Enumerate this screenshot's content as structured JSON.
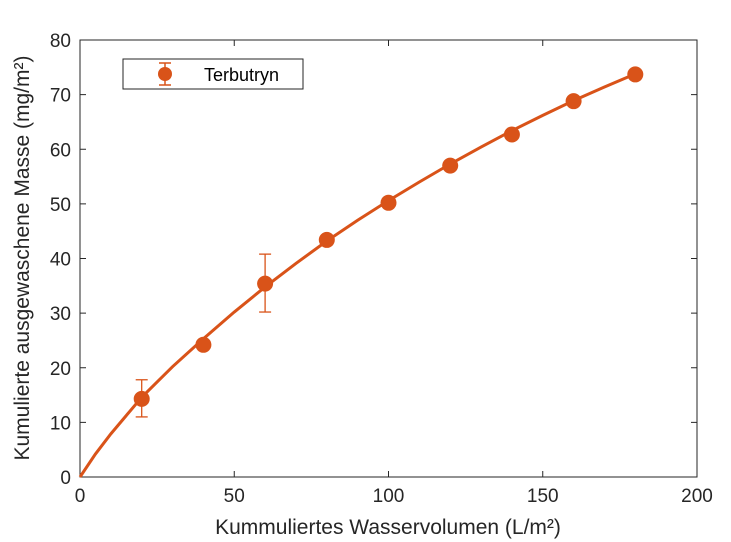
{
  "chart_data": {
    "type": "scatter",
    "title": "",
    "xlabel": "Kummuliertes Wasservolumen (L/m²)",
    "ylabel": "Kumulierte ausgewaschene Masse (mg/m²)",
    "xlim": [
      0,
      200
    ],
    "ylim": [
      0,
      80
    ],
    "xticks": [
      0,
      50,
      100,
      150,
      200
    ],
    "yticks": [
      0,
      10,
      20,
      30,
      40,
      50,
      60,
      70,
      80
    ],
    "xtick_labels": [
      "0",
      "50",
      "100",
      "150",
      "200"
    ],
    "ytick_labels": [
      "0",
      "10",
      "20",
      "30",
      "40",
      "50",
      "60",
      "70",
      "80"
    ],
    "grid": false,
    "legend_position": "top-left",
    "series": [
      {
        "name": "Terbutryn",
        "color": "#D95319",
        "marker": "circle",
        "x": [
          20,
          40,
          60,
          80,
          100,
          120,
          140,
          160,
          180
        ],
        "y": [
          14.3,
          24.2,
          35.4,
          43.4,
          50.2,
          57.0,
          62.7,
          68.8,
          73.7
        ],
        "error_low": [
          3.3,
          0,
          5.2,
          0,
          0.5,
          0,
          0,
          0,
          0
        ],
        "error_high": [
          3.5,
          0,
          5.4,
          0,
          0.5,
          0,
          0,
          0,
          0
        ]
      }
    ],
    "fit_curve": {
      "color": "#D95319",
      "x": [
        0,
        5,
        10,
        20,
        30,
        40,
        50,
        60,
        70,
        80,
        90,
        100,
        110,
        120,
        130,
        140,
        150,
        160,
        170,
        180
      ],
      "y": [
        0,
        4.2,
        7.9,
        14.6,
        20.2,
        25.3,
        30.2,
        34.8,
        39.1,
        43.2,
        47.0,
        50.6,
        54.0,
        57.3,
        60.4,
        63.4,
        66.2,
        68.9,
        71.4,
        73.8
      ]
    }
  }
}
